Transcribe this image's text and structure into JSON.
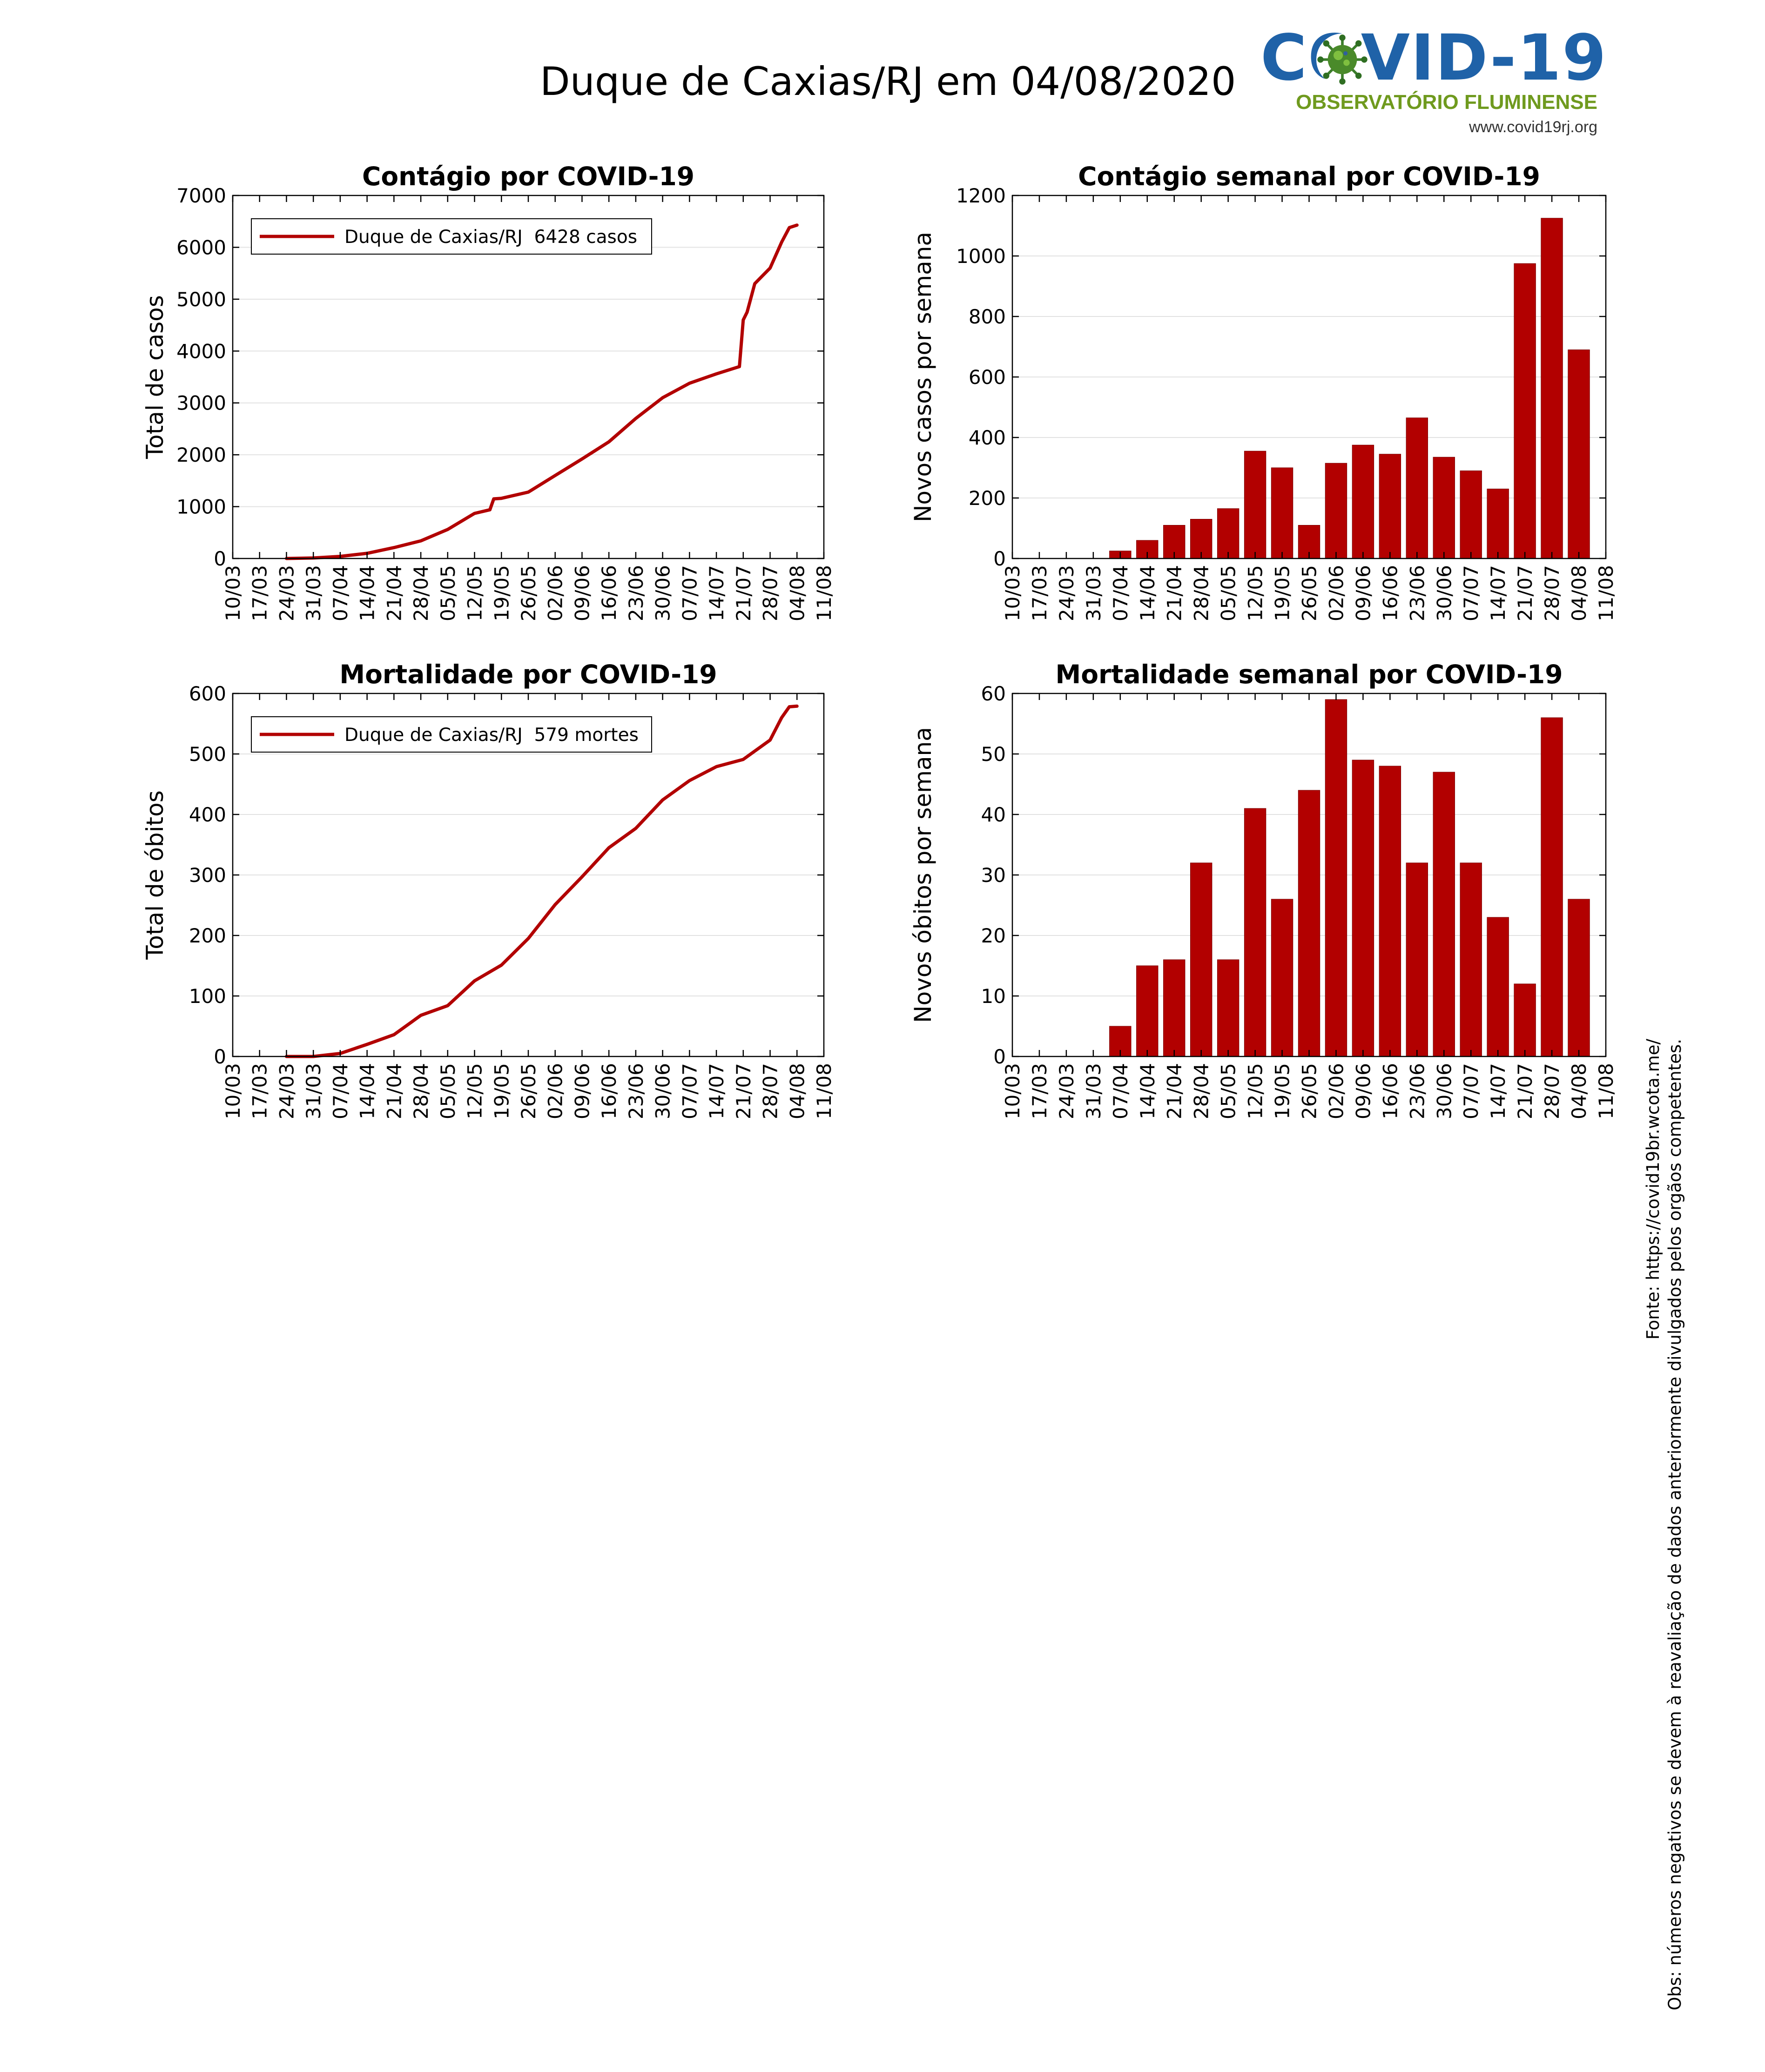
{
  "header": {
    "title": "Duque de Caxias/RJ em 04/08/2020"
  },
  "logo": {
    "main": "COVID-19",
    "subtitle": "OBSERVATÓRIO FLUMINENSE",
    "url": "www.covid19rj.org",
    "icon": "virus-icon",
    "colors": {
      "main": "#1f62a8",
      "subtitle": "#6f9a1e",
      "virus": "#4a8a2a"
    }
  },
  "side_note": {
    "source": "Fonte: https://covid19br.wcota.me/",
    "obs": "Obs: números negativos se devem à reavaliação de dados anteriormente divulgados pelos orgãos competentes."
  },
  "colors": {
    "series": "#b20000",
    "grid": "#e2e2e2",
    "axis": "#000000"
  },
  "chart_data": [
    {
      "id": "cases-total",
      "type": "line",
      "title": "Contágio por COVID-19",
      "xlabel": "",
      "ylabel": "Total de casos",
      "ylim": [
        0,
        7000
      ],
      "yticks": [
        0,
        1000,
        2000,
        3000,
        4000,
        5000,
        6000,
        7000
      ],
      "xlim": [
        "10/03",
        "11/08"
      ],
      "xticks": [
        "10/03",
        "17/03",
        "24/03",
        "31/03",
        "07/04",
        "14/04",
        "21/04",
        "28/04",
        "05/05",
        "12/05",
        "19/05",
        "26/05",
        "02/06",
        "09/06",
        "16/06",
        "23/06",
        "30/06",
        "07/07",
        "14/07",
        "21/07",
        "28/07",
        "04/08",
        "11/08"
      ],
      "grid": true,
      "legend": {
        "position": "top-left",
        "label": "Duque de Caxias/RJ  6428 casos"
      },
      "series": [
        {
          "name": "Duque de Caxias/RJ",
          "x": [
            "24/03",
            "31/03",
            "07/04",
            "14/04",
            "21/04",
            "28/04",
            "05/05",
            "12/05",
            "16/05",
            "17/05",
            "19/05",
            "26/05",
            "02/06",
            "09/06",
            "16/06",
            "23/06",
            "30/06",
            "07/07",
            "14/07",
            "20/07",
            "21/07",
            "22/07",
            "24/07",
            "28/07",
            "31/07",
            "02/08",
            "04/08"
          ],
          "y": [
            0,
            10,
            40,
            100,
            210,
            340,
            560,
            870,
            940,
            1150,
            1160,
            1280,
            1600,
            1920,
            2250,
            2700,
            3100,
            3380,
            3560,
            3700,
            4600,
            4750,
            5300,
            5600,
            6100,
            6380,
            6428
          ]
        }
      ]
    },
    {
      "id": "cases-weekly",
      "type": "bar",
      "title": "Contágio semanal por COVID-19",
      "xlabel": "",
      "ylabel": "Novos casos por semana",
      "ylim": [
        0,
        1200
      ],
      "yticks": [
        0,
        200,
        400,
        600,
        800,
        1000,
        1200
      ],
      "xlim": [
        "10/03",
        "11/08"
      ],
      "xticks": [
        "10/03",
        "17/03",
        "24/03",
        "31/03",
        "07/04",
        "14/04",
        "21/04",
        "28/04",
        "05/05",
        "12/05",
        "19/05",
        "26/05",
        "02/06",
        "09/06",
        "16/06",
        "23/06",
        "30/06",
        "07/07",
        "14/07",
        "21/07",
        "28/07",
        "04/08",
        "11/08"
      ],
      "grid": true,
      "categories": [
        "07/04",
        "14/04",
        "21/04",
        "28/04",
        "05/05",
        "12/05",
        "19/05",
        "26/05",
        "02/06",
        "09/06",
        "16/06",
        "23/06",
        "30/06",
        "07/07",
        "14/07",
        "21/07",
        "28/07",
        "04/08"
      ],
      "values": [
        25,
        60,
        110,
        130,
        165,
        355,
        300,
        110,
        315,
        375,
        345,
        465,
        335,
        290,
        230,
        975,
        1125,
        690
      ]
    },
    {
      "id": "deaths-total",
      "type": "line",
      "title": "Mortalidade por COVID-19",
      "xlabel": "",
      "ylabel": "Total de óbitos",
      "ylim": [
        0,
        600
      ],
      "yticks": [
        0,
        100,
        200,
        300,
        400,
        500,
        600
      ],
      "xlim": [
        "10/03",
        "11/08"
      ],
      "xticks": [
        "10/03",
        "17/03",
        "24/03",
        "31/03",
        "07/04",
        "14/04",
        "21/04",
        "28/04",
        "05/05",
        "12/05",
        "19/05",
        "26/05",
        "02/06",
        "09/06",
        "16/06",
        "23/06",
        "30/06",
        "07/07",
        "14/07",
        "21/07",
        "28/07",
        "04/08",
        "11/08"
      ],
      "grid": true,
      "legend": {
        "position": "top-left",
        "label": "Duque de Caxias/RJ  579 mortes"
      },
      "series": [
        {
          "name": "Duque de Caxias/RJ",
          "x": [
            "24/03",
            "31/03",
            "07/04",
            "14/04",
            "21/04",
            "28/04",
            "05/05",
            "12/05",
            "19/05",
            "26/05",
            "02/06",
            "09/06",
            "16/06",
            "23/06",
            "30/06",
            "07/07",
            "14/07",
            "21/07",
            "28/07",
            "31/07",
            "02/08",
            "04/08"
          ],
          "y": [
            0,
            0,
            5,
            20,
            36,
            68,
            84,
            125,
            151,
            195,
            251,
            297,
            345,
            377,
            424,
            456,
            479,
            491,
            523,
            560,
            578,
            579
          ]
        }
      ]
    },
    {
      "id": "deaths-weekly",
      "type": "bar",
      "title": "Mortalidade semanal por COVID-19",
      "xlabel": "",
      "ylabel": "Novos óbitos por semana",
      "ylim": [
        0,
        60
      ],
      "yticks": [
        0,
        10,
        20,
        30,
        40,
        50,
        60
      ],
      "xlim": [
        "10/03",
        "11/08"
      ],
      "xticks": [
        "10/03",
        "17/03",
        "24/03",
        "31/03",
        "07/04",
        "14/04",
        "21/04",
        "28/04",
        "05/05",
        "12/05",
        "19/05",
        "26/05",
        "02/06",
        "09/06",
        "16/06",
        "23/06",
        "30/06",
        "07/07",
        "14/07",
        "21/07",
        "28/07",
        "04/08",
        "11/08"
      ],
      "grid": true,
      "categories": [
        "07/04",
        "14/04",
        "21/04",
        "28/04",
        "05/05",
        "12/05",
        "19/05",
        "26/05",
        "02/06",
        "09/06",
        "16/06",
        "23/06",
        "30/06",
        "07/07",
        "14/07",
        "21/07",
        "28/07",
        "04/08"
      ],
      "values": [
        5,
        15,
        16,
        32,
        16,
        41,
        26,
        44,
        59,
        49,
        48,
        32,
        47,
        32,
        23,
        12,
        56,
        26
      ]
    }
  ]
}
